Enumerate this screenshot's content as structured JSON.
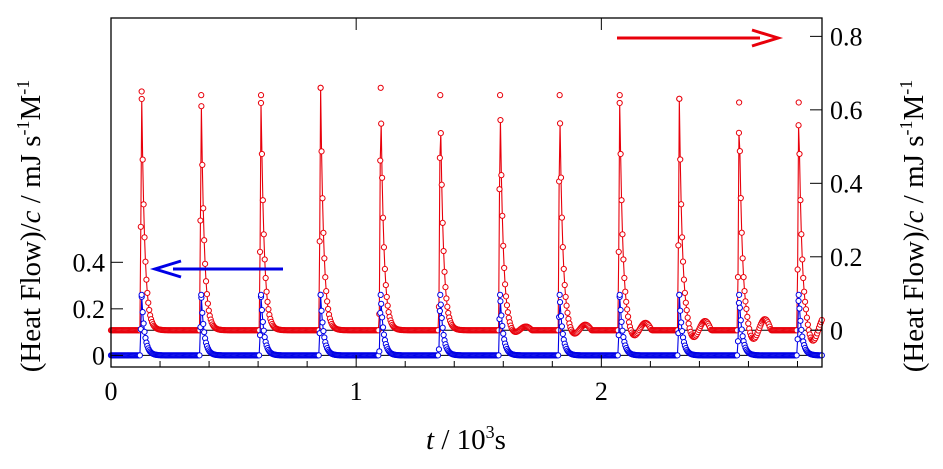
{
  "chart_data": {
    "type": "line",
    "xlabel": {
      "var": "t",
      "unit": "/ 10",
      "exp": "3",
      "tail": "s"
    },
    "ylabel_left": {
      "pre": "(Heat Flow)/",
      "var": "c",
      "unit": " / mJ s",
      "exp1": "-1",
      "unit2": "M",
      "exp2": "-1"
    },
    "ylabel_right": {
      "pre": "(Heat Flow)/",
      "var": "c",
      "unit": " / mJ s",
      "exp1": "-1",
      "unit2": "M",
      "exp2": "-1"
    },
    "xlim": [
      0,
      2.9
    ],
    "x_ticks": [
      0,
      1,
      2
    ],
    "x_tick_labels": [
      "0",
      "1",
      "2"
    ],
    "right_axis": {
      "ylim": [
        -0.1,
        0.85
      ],
      "ticks": [
        0,
        0.2,
        0.4,
        0.6,
        0.8
      ],
      "tick_labels": [
        "0",
        "0.2",
        "0.4",
        "0.6",
        "0.8"
      ]
    },
    "left_axis": {
      "ylim": [
        -0.05,
        1.45
      ],
      "ticks": [
        0,
        0.2,
        0.4
      ],
      "tick_labels": [
        "0",
        "0.2",
        "0.4"
      ]
    },
    "series": [
      {
        "axis": "right",
        "color": "#e8000b",
        "peak_times": [
          0.125,
          0.368,
          0.612,
          0.855,
          1.1,
          1.343,
          1.587,
          1.83,
          2.075,
          2.318,
          2.562,
          2.805
        ],
        "peak_heights": [
          0.65,
          0.64,
          0.64,
          0.66,
          0.66,
          0.64,
          0.64,
          0.64,
          0.64,
          0.63,
          0.62,
          0.62
        ]
      },
      {
        "axis": "left",
        "color": "#0000e6",
        "peak_times": [
          0.125,
          0.368,
          0.612,
          0.855,
          1.1,
          1.343,
          1.587,
          1.83,
          2.075,
          2.318,
          2.562,
          2.805
        ],
        "peak_heights": [
          0.26,
          0.26,
          0.26,
          0.26,
          0.26,
          0.26,
          0.26,
          0.26,
          0.26,
          0.26,
          0.26,
          0.26
        ]
      }
    ],
    "arrows": [
      {
        "series": "right",
        "points_to": "right-axis",
        "color": "#e8000b"
      },
      {
        "series": "left",
        "points_to": "left-axis",
        "color": "#0000e6"
      }
    ]
  }
}
